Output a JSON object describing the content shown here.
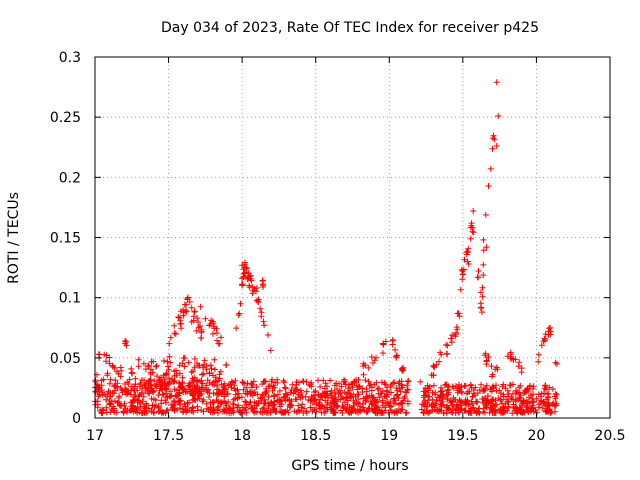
{
  "chart_data": {
    "type": "scatter",
    "title": "Day 034 of 2023, Rate Of TEC Index for receiver p425",
    "xlabel": "GPS time / hours",
    "ylabel": "ROTI / TECUs",
    "xlim": [
      17,
      20.5
    ],
    "ylim": [
      0,
      0.3
    ],
    "xticks": [
      "17",
      "17.5",
      "18",
      "18.5",
      "19",
      "19.5",
      "20",
      "20.5"
    ],
    "yticks": [
      "0",
      "0.05",
      "0.1",
      "0.15",
      "0.2",
      "0.25",
      "0.3"
    ],
    "grid": true,
    "marker": "+",
    "color": "#ff0000",
    "series": [
      {
        "name": "ROTI",
        "bands": [
          {
            "x0": 17.0,
            "x1": 19.13,
            "min": 0.004,
            "max": 0.032,
            "count": 900
          },
          {
            "x0": 19.22,
            "x1": 20.14,
            "min": 0.004,
            "max": 0.028,
            "count": 420
          },
          {
            "x0": 17.0,
            "x1": 17.9,
            "min": 0.02,
            "max": 0.05,
            "count": 120
          },
          {
            "x0": 17.35,
            "x1": 17.9,
            "min": 0.02,
            "max": 0.045,
            "count": 60
          }
        ],
        "arcs": [
          {
            "points": [
              [
                17.02,
                0.053
              ],
              [
                17.08,
                0.048
              ],
              [
                17.12,
                0.045
              ],
              [
                17.18,
                0.04
              ]
            ],
            "spread": 0.004,
            "count": 12
          },
          {
            "points": [
              [
                17.2,
                0.065
              ],
              [
                17.22,
                0.06
              ]
            ],
            "spread": 0.003,
            "count": 4
          },
          {
            "points": [
              [
                17.48,
                0.045
              ],
              [
                17.55,
                0.075
              ],
              [
                17.6,
                0.085
              ],
              [
                17.63,
                0.095
              ],
              [
                17.7,
                0.075
              ],
              [
                17.75,
                0.06
              ]
            ],
            "spread": 0.008,
            "count": 40
          },
          {
            "points": [
              [
                17.7,
                0.093
              ],
              [
                17.8,
                0.075
              ],
              [
                17.88,
                0.06
              ]
            ],
            "spread": 0.007,
            "count": 16
          },
          {
            "points": [
              [
                17.95,
                0.06
              ],
              [
                17.98,
                0.09
              ],
              [
                18.0,
                0.115
              ],
              [
                18.02,
                0.125
              ],
              [
                18.05,
                0.115
              ],
              [
                18.1,
                0.1
              ],
              [
                18.15,
                0.08
              ],
              [
                18.2,
                0.06
              ]
            ],
            "spread": 0.006,
            "count": 45
          },
          {
            "points": [
              [
                18.12,
                0.12
              ],
              [
                18.15,
                0.108
              ]
            ],
            "spread": 0.003,
            "count": 5
          },
          {
            "points": [
              [
                18.82,
                0.04
              ],
              [
                18.95,
                0.055
              ],
              [
                18.98,
                0.063
              ]
            ],
            "spread": 0.005,
            "count": 14
          },
          {
            "points": [
              [
                19.02,
                0.065
              ],
              [
                19.05,
                0.05
              ],
              [
                19.1,
                0.038
              ]
            ],
            "spread": 0.005,
            "count": 12
          },
          {
            "points": [
              [
                19.27,
                0.03
              ],
              [
                19.33,
                0.045
              ],
              [
                19.4,
                0.06
              ],
              [
                19.45,
                0.075
              ],
              [
                19.48,
                0.085
              ]
            ],
            "spread": 0.007,
            "count": 25
          },
          {
            "points": [
              [
                19.48,
                0.11
              ],
              [
                19.52,
                0.13
              ],
              [
                19.55,
                0.15
              ],
              [
                19.57,
                0.165
              ],
              [
                19.62,
                0.1
              ],
              [
                19.63,
                0.09
              ],
              [
                19.65,
                0.17
              ],
              [
                19.67,
                0.185
              ],
              [
                19.7,
                0.225
              ],
              [
                19.72,
                0.23
              ]
            ],
            "spread": 0.008,
            "count": 40
          },
          {
            "points": [
              [
                19.65,
                0.05
              ],
              [
                19.7,
                0.04
              ],
              [
                19.75,
                0.045
              ]
            ],
            "spread": 0.006,
            "count": 12
          },
          {
            "points": [
              [
                19.8,
                0.055
              ],
              [
                19.85,
                0.05
              ],
              [
                19.9,
                0.04
              ]
            ],
            "spread": 0.005,
            "count": 12
          },
          {
            "points": [
              [
                20.0,
                0.045
              ],
              [
                20.05,
                0.065
              ],
              [
                20.08,
                0.07
              ],
              [
                20.1,
                0.075
              ]
            ],
            "spread": 0.005,
            "count": 14
          }
        ],
        "points": [
          [
            19.73,
            0.279
          ],
          [
            19.74,
            0.251
          ],
          [
            19.69,
            0.207
          ],
          [
            19.64,
            0.148
          ],
          [
            19.66,
            0.142
          ],
          [
            19.6,
            0.117
          ],
          [
            19.54,
            0.128
          ],
          [
            18.0,
            0.127
          ],
          [
            18.03,
            0.124
          ],
          [
            18.1,
            0.108
          ],
          [
            19.73,
            0.226
          ],
          [
            20.13,
            0.046
          ],
          [
            20.14,
            0.045
          ],
          [
            19.21,
            0.03
          ],
          [
            17.6,
            0.085
          ]
        ]
      }
    ]
  }
}
